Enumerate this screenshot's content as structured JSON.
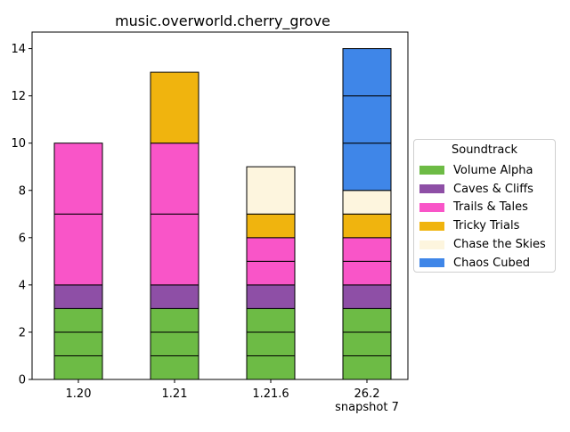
{
  "chart_data": {
    "type": "bar",
    "stacked": true,
    "title": "music.overworld.cherry_grove",
    "xlabel": "",
    "ylabel": "",
    "ylim": [
      0,
      14.7
    ],
    "yticks": [
      0,
      2,
      4,
      6,
      8,
      10,
      12,
      14
    ],
    "categories": [
      "1.20",
      "1.21",
      "1.21.6",
      "26.2\nsnapshot 7"
    ],
    "category_labels": [
      [
        "1.20"
      ],
      [
        "1.21"
      ],
      [
        "1.21.6"
      ],
      [
        "26.2",
        "snapshot 7"
      ]
    ],
    "grid": false,
    "bar_edge_color": "#000000",
    "legend": {
      "title": "Soundtrack",
      "placement": "center-left outside plot (right side)"
    },
    "series": [
      {
        "name": "Volume Alpha",
        "color": "#6dbb45",
        "segments": [
          [
            1,
            1,
            1
          ],
          [
            1,
            1,
            1
          ],
          [
            1,
            1,
            1
          ],
          [
            1,
            1,
            1
          ]
        ]
      },
      {
        "name": "Caves & Cliffs",
        "color": "#8e4fa6",
        "segments": [
          [
            1
          ],
          [
            1
          ],
          [
            1
          ],
          [
            1
          ]
        ]
      },
      {
        "name": "Trails & Tales",
        "color": "#f955c8",
        "segments": [
          [
            3,
            3
          ],
          [
            3,
            3
          ],
          [
            1,
            1
          ],
          [
            1,
            1
          ]
        ]
      },
      {
        "name": "Tricky Trials",
        "color": "#f0b40e",
        "segments": [
          [],
          [
            3
          ],
          [
            1
          ],
          [
            1
          ]
        ]
      },
      {
        "name": "Chase the Skies",
        "color": "#fdf5de",
        "segments": [
          [],
          [],
          [
            2
          ],
          [
            1
          ]
        ]
      },
      {
        "name": "Chaos Cubed",
        "color": "#3f86e8",
        "segments": [
          [],
          [],
          [],
          [
            2,
            2,
            2
          ]
        ]
      }
    ],
    "totals": [
      10,
      13,
      9,
      14
    ]
  }
}
